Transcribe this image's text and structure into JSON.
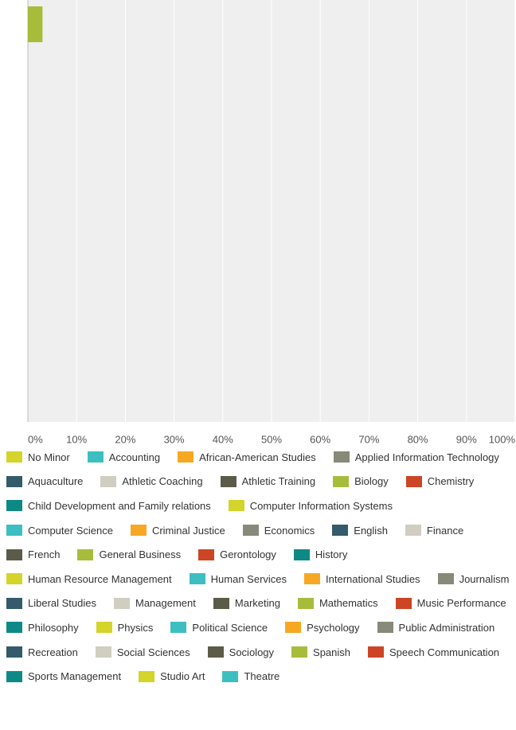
{
  "chart_data": {
    "type": "stacked_bar_horizontal",
    "categories": [
      null
    ],
    "xlim": [
      0,
      100
    ],
    "xticks": [
      {
        "value": 0,
        "label": "0%"
      },
      {
        "value": 10,
        "label": "10%"
      },
      {
        "value": 20,
        "label": "20%"
      },
      {
        "value": 30,
        "label": "30%"
      },
      {
        "value": 40,
        "label": "40%"
      },
      {
        "value": 50,
        "label": "50%"
      },
      {
        "value": 60,
        "label": "60%"
      },
      {
        "value": 70,
        "label": "70%"
      },
      {
        "value": 80,
        "label": "80%"
      },
      {
        "value": 90,
        "label": "90%"
      },
      {
        "value": 100,
        "label": "100%"
      }
    ],
    "grid": true,
    "series": [
      {
        "name": "No Minor",
        "color": "#d4d42a",
        "values": [
          0
        ]
      },
      {
        "name": "Accounting",
        "color": "#3dbfc2",
        "values": [
          0
        ]
      },
      {
        "name": "African-American Studies",
        "color": "#f7a823",
        "values": [
          0
        ]
      },
      {
        "name": "Applied Information Technology",
        "color": "#878a78",
        "values": [
          0
        ]
      },
      {
        "name": "Aquaculture",
        "color": "#335b6c",
        "values": [
          0
        ]
      },
      {
        "name": "Athletic Coaching",
        "color": "#d0cec0",
        "values": [
          0
        ]
      },
      {
        "name": "Athletic Training",
        "color": "#5b5b49",
        "values": [
          0
        ]
      },
      {
        "name": "Biology",
        "color": "#a8bc3b",
        "values": [
          3
        ]
      },
      {
        "name": "Chemistry",
        "color": "#cc4524",
        "values": [
          0
        ]
      },
      {
        "name": "Child Development and Family relations",
        "color": "#0d8a86",
        "values": [
          0
        ]
      },
      {
        "name": "Computer Information Systems",
        "color": "#d4d42a",
        "values": [
          0
        ]
      },
      {
        "name": "Computer Science",
        "color": "#3dbfc2",
        "values": [
          0
        ]
      },
      {
        "name": "Criminal Justice",
        "color": "#f7a823",
        "values": [
          0
        ]
      },
      {
        "name": "Economics",
        "color": "#878a78",
        "values": [
          0
        ]
      },
      {
        "name": "English",
        "color": "#335b6c",
        "values": [
          0
        ]
      },
      {
        "name": "Finance",
        "color": "#d0cec0",
        "values": [
          0
        ]
      },
      {
        "name": "French",
        "color": "#5b5b49",
        "values": [
          0
        ]
      },
      {
        "name": "General Business",
        "color": "#a8bc3b",
        "values": [
          0
        ]
      },
      {
        "name": "Gerontology",
        "color": "#cc4524",
        "values": [
          0
        ]
      },
      {
        "name": "History",
        "color": "#0d8a86",
        "values": [
          0
        ]
      },
      {
        "name": "Human Resource Management",
        "color": "#d4d42a",
        "values": [
          0
        ]
      },
      {
        "name": "Human Services",
        "color": "#3dbfc2",
        "values": [
          0
        ]
      },
      {
        "name": "International Studies",
        "color": "#f7a823",
        "values": [
          0
        ]
      },
      {
        "name": "Journalism",
        "color": "#878a78",
        "values": [
          0
        ]
      },
      {
        "name": "Liberal Studies",
        "color": "#335b6c",
        "values": [
          0
        ]
      },
      {
        "name": "Management",
        "color": "#d0cec0",
        "values": [
          0
        ]
      },
      {
        "name": "Marketing",
        "color": "#5b5b49",
        "values": [
          0
        ]
      },
      {
        "name": "Mathematics",
        "color": "#a8bc3b",
        "values": [
          0
        ]
      },
      {
        "name": "Music Performance",
        "color": "#cc4524",
        "values": [
          0
        ]
      },
      {
        "name": "Philosophy",
        "color": "#0d8a86",
        "values": [
          0
        ]
      },
      {
        "name": "Physics",
        "color": "#d4d42a",
        "values": [
          0
        ]
      },
      {
        "name": "Political Science",
        "color": "#3dbfc2",
        "values": [
          0
        ]
      },
      {
        "name": "Psychology",
        "color": "#f7a823",
        "values": [
          0
        ]
      },
      {
        "name": "Public Administration",
        "color": "#878a78",
        "values": [
          0
        ]
      },
      {
        "name": "Recreation",
        "color": "#335b6c",
        "values": [
          0
        ]
      },
      {
        "name": "Social Sciences",
        "color": "#d0cec0",
        "values": [
          0
        ]
      },
      {
        "name": "Sociology",
        "color": "#5b5b49",
        "values": [
          0
        ]
      },
      {
        "name": "Spanish",
        "color": "#a8bc3b",
        "values": [
          0
        ]
      },
      {
        "name": "Speech Communication",
        "color": "#cc4524",
        "values": [
          0
        ]
      },
      {
        "name": "Sports Management",
        "color": "#0d8a86",
        "values": [
          0
        ]
      },
      {
        "name": "Studio Art",
        "color": "#d4d42a",
        "values": [
          0
        ]
      },
      {
        "name": "Theatre",
        "color": "#3dbfc2",
        "values": [
          0
        ]
      }
    ]
  }
}
